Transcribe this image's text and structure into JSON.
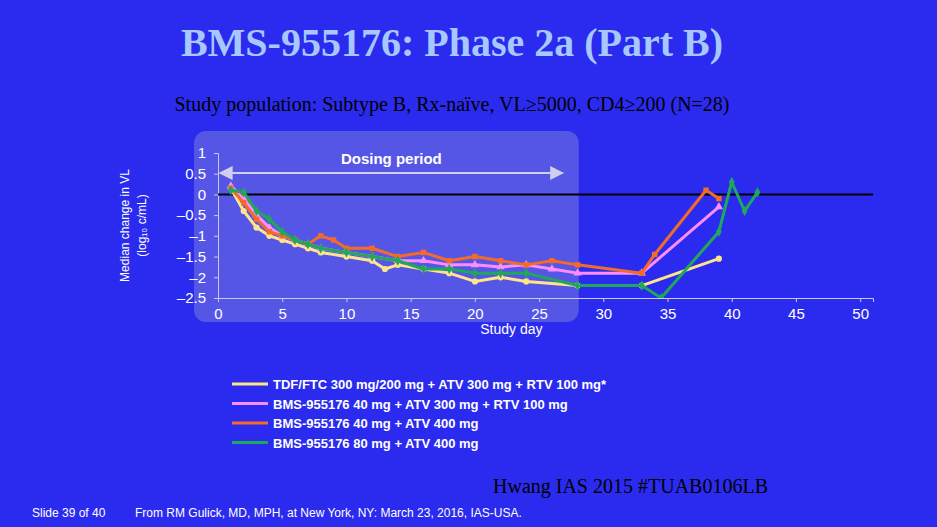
{
  "chart_data": {
    "type": "line",
    "title": "BMS-955176: Phase 2a (Part B)",
    "subtitle": "Study population: Subtype B, Rx-naïve, VL≥5000, CD4≥200 (N=28)",
    "x_label": "Study day",
    "y_label": [
      "Median change in VL",
      "(log₁₀ c/mL)"
    ],
    "xlim": [
      0,
      51
    ],
    "xticks": [
      0,
      5,
      10,
      15,
      20,
      25,
      30,
      35,
      40,
      45,
      50
    ],
    "ylim": [
      -2.5,
      1
    ],
    "yticks": [
      1,
      0.5,
      0,
      {
        "value": -0.5,
        "label": "–0.5"
      },
      {
        "value": -1,
        "label": "–1"
      },
      {
        "value": -1.5,
        "label": "–1.5"
      },
      {
        "value": -2,
        "label": "–2"
      },
      {
        "value": -2.5,
        "label": "–2.5"
      }
    ],
    "grid": false,
    "legend": "bottom",
    "reference_line": {
      "y": 0
    },
    "dosing_period": {
      "label": "Dosing period",
      "start": 0,
      "end": 27
    },
    "series": [
      {
        "name": "TDF/FTC 300 mg/200 mg + ATV 300 mg + RTV 100 mg*",
        "color": "#ffe58a",
        "marker": "circle",
        "x": [
          1,
          2,
          3,
          4,
          5,
          6,
          7,
          8,
          10,
          12,
          13,
          14,
          16,
          18,
          20,
          22,
          24,
          28,
          33,
          39
        ],
        "values": [
          0.15,
          -0.4,
          -0.8,
          -1.0,
          -1.1,
          -1.2,
          -1.3,
          -1.4,
          -1.5,
          -1.6,
          -1.8,
          -1.7,
          -1.8,
          -1.9,
          -2.1,
          -2.0,
          -2.1,
          -2.2,
          -2.2,
          -1.55
        ]
      },
      {
        "name": "BMS-955176 40 mg + ATV 300 mg + RTV 100 mg",
        "color": "#ff8cff",
        "marker": "triangle",
        "x": [
          1,
          2,
          3,
          4,
          5,
          6,
          7,
          8,
          10,
          12,
          14,
          16,
          18,
          20,
          22,
          24,
          26,
          28,
          33,
          39
        ],
        "values": [
          0.2,
          -0.1,
          -0.5,
          -0.8,
          -1.0,
          -1.1,
          -1.2,
          -1.3,
          -1.4,
          -1.5,
          -1.6,
          -1.6,
          -1.7,
          -1.7,
          -1.75,
          -1.7,
          -1.8,
          -1.9,
          -1.9,
          -0.3
        ]
      },
      {
        "name": "BMS-955176 40 mg + ATV 400 mg",
        "color": "#f26b2a",
        "marker": "square",
        "x": [
          1,
          2,
          3,
          4,
          5,
          6,
          7,
          8,
          9,
          10,
          12,
          14,
          16,
          18,
          20,
          22,
          24,
          26,
          28,
          33,
          34,
          38,
          39
        ],
        "values": [
          0.15,
          -0.2,
          -0.6,
          -0.9,
          -1.0,
          -1.1,
          -1.2,
          -1.0,
          -1.1,
          -1.3,
          -1.3,
          -1.5,
          -1.4,
          -1.6,
          -1.5,
          -1.6,
          -1.7,
          -1.6,
          -1.7,
          -1.9,
          -1.45,
          0.1,
          -0.1
        ]
      },
      {
        "name": "BMS-955176 80 mg + ATV 400 mg",
        "color": "#1fa85a",
        "marker": "diamond",
        "x": [
          1,
          2,
          3,
          4,
          5,
          6,
          7,
          8,
          10,
          12,
          14,
          16,
          18,
          20,
          22,
          24,
          28,
          33,
          34.5,
          39,
          40,
          41,
          42
        ],
        "values": [
          0.1,
          0.05,
          -0.4,
          -0.6,
          -0.9,
          -1.1,
          -1.2,
          -1.3,
          -1.4,
          -1.5,
          -1.6,
          -1.8,
          -1.8,
          -1.9,
          -1.9,
          -1.9,
          -2.2,
          -2.2,
          -2.5,
          -0.9,
          0.3,
          -0.4,
          0.05
        ]
      }
    ]
  },
  "slide": {
    "citation": "Hwang IAS 2015 #TUAB0106LB",
    "slide_number": "Slide 39 of 40",
    "source": "From RM Gulick, MD, MPH, at New York, NY: March 23, 2016, IAS-USA."
  }
}
